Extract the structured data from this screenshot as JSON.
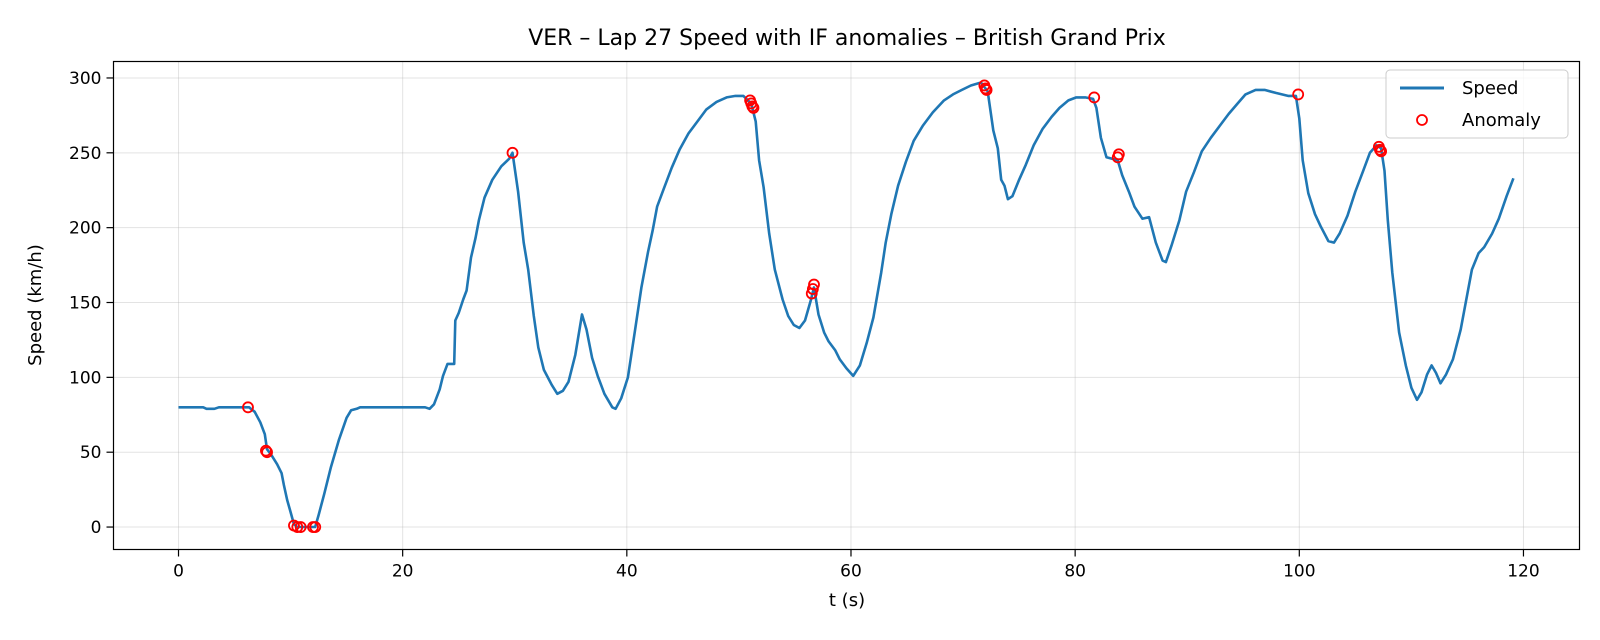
{
  "chart_data": {
    "type": "line",
    "title": "VER – Lap 27 Speed with IF anomalies – British Grand Prix",
    "xlabel": "t (s)",
    "ylabel": "Speed (km/h)",
    "xlim": [
      -5.8,
      125
    ],
    "ylim": [
      -15,
      311
    ],
    "x_ticks": [
      0,
      20,
      40,
      60,
      80,
      100,
      120
    ],
    "y_ticks": [
      0,
      50,
      100,
      150,
      200,
      250,
      300
    ],
    "grid": true,
    "legend": {
      "position": "top-right",
      "entries": [
        "Speed",
        "Anomaly"
      ]
    },
    "series": [
      {
        "name": "Speed",
        "color": "#1f77b4",
        "points": [
          [
            0,
            80
          ],
          [
            2.2,
            80
          ],
          [
            2.5,
            79
          ],
          [
            3.2,
            79
          ],
          [
            3.6,
            80
          ],
          [
            6.3,
            80
          ],
          [
            6.8,
            77
          ],
          [
            7.3,
            70
          ],
          [
            7.7,
            62
          ],
          [
            7.9,
            52
          ],
          [
            8.3,
            48
          ],
          [
            8.8,
            42
          ],
          [
            9.2,
            36
          ],
          [
            9.4,
            28
          ],
          [
            9.7,
            18
          ],
          [
            10.0,
            10
          ],
          [
            10.3,
            2
          ],
          [
            10.6,
            0
          ],
          [
            12.2,
            0
          ],
          [
            12.5,
            8
          ],
          [
            13.0,
            22
          ],
          [
            13.6,
            40
          ],
          [
            14.3,
            58
          ],
          [
            15.0,
            73
          ],
          [
            15.4,
            78
          ],
          [
            15.9,
            79
          ],
          [
            16.2,
            80
          ],
          [
            22.0,
            80
          ],
          [
            22.4,
            79
          ],
          [
            22.8,
            82
          ],
          [
            23.3,
            92
          ],
          [
            23.6,
            101
          ],
          [
            24.0,
            109
          ],
          [
            24.6,
            109
          ],
          [
            24.7,
            138
          ],
          [
            25.0,
            143
          ],
          [
            25.4,
            152
          ],
          [
            25.7,
            158
          ],
          [
            26.1,
            180
          ],
          [
            26.5,
            193
          ],
          [
            26.8,
            205
          ],
          [
            27.3,
            220
          ],
          [
            28.0,
            232
          ],
          [
            28.8,
            241
          ],
          [
            29.5,
            246
          ],
          [
            29.8,
            250
          ],
          [
            30.3,
            224
          ],
          [
            30.8,
            190
          ],
          [
            31.2,
            172
          ],
          [
            31.7,
            141
          ],
          [
            32.1,
            120
          ],
          [
            32.6,
            105
          ],
          [
            33.3,
            95
          ],
          [
            33.8,
            89
          ],
          [
            34.3,
            91
          ],
          [
            34.8,
            97
          ],
          [
            35.4,
            115
          ],
          [
            36.0,
            142
          ],
          [
            36.4,
            132
          ],
          [
            36.9,
            113
          ],
          [
            37.4,
            101
          ],
          [
            38.0,
            89
          ],
          [
            38.7,
            80
          ],
          [
            39.0,
            79
          ],
          [
            39.5,
            86
          ],
          [
            40.1,
            100
          ],
          [
            40.7,
            130
          ],
          [
            41.3,
            160
          ],
          [
            41.9,
            184
          ],
          [
            42.3,
            198
          ],
          [
            42.7,
            214
          ],
          [
            43.3,
            226
          ],
          [
            44.0,
            240
          ],
          [
            44.7,
            252
          ],
          [
            45.5,
            263
          ],
          [
            46.4,
            272
          ],
          [
            47.1,
            279
          ],
          [
            48.0,
            284
          ],
          [
            48.9,
            287
          ],
          [
            49.7,
            288
          ],
          [
            50.4,
            288
          ],
          [
            51.1,
            283
          ],
          [
            51.5,
            271
          ],
          [
            51.8,
            245
          ],
          [
            52.2,
            227
          ],
          [
            52.7,
            196
          ],
          [
            53.2,
            172
          ],
          [
            53.9,
            152
          ],
          [
            54.4,
            141
          ],
          [
            54.9,
            135
          ],
          [
            55.4,
            133
          ],
          [
            55.9,
            138
          ],
          [
            56.4,
            151
          ],
          [
            56.7,
            160
          ],
          [
            57.1,
            142
          ],
          [
            57.6,
            130
          ],
          [
            58.0,
            124
          ],
          [
            58.6,
            118
          ],
          [
            59.0,
            112
          ],
          [
            59.6,
            106
          ],
          [
            60.2,
            101
          ],
          [
            60.8,
            108
          ],
          [
            61.4,
            123
          ],
          [
            62.0,
            140
          ],
          [
            62.7,
            170
          ],
          [
            63.1,
            190
          ],
          [
            63.6,
            209
          ],
          [
            64.2,
            228
          ],
          [
            64.9,
            244
          ],
          [
            65.6,
            258
          ],
          [
            66.4,
            268
          ],
          [
            67.3,
            277
          ],
          [
            68.3,
            285
          ],
          [
            69.1,
            289
          ],
          [
            69.9,
            292
          ],
          [
            70.7,
            295
          ],
          [
            71.6,
            297
          ],
          [
            72.2,
            291
          ],
          [
            72.7,
            265
          ],
          [
            73.1,
            253
          ],
          [
            73.4,
            232
          ],
          [
            73.7,
            228
          ],
          [
            74.0,
            219
          ],
          [
            74.4,
            221
          ],
          [
            75.0,
            232
          ],
          [
            75.6,
            242
          ],
          [
            76.3,
            255
          ],
          [
            77.1,
            266
          ],
          [
            77.9,
            274
          ],
          [
            78.6,
            280
          ],
          [
            79.4,
            285
          ],
          [
            80.1,
            287
          ],
          [
            80.9,
            287
          ],
          [
            81.6,
            286
          ],
          [
            81.9,
            280
          ],
          [
            82.3,
            260
          ],
          [
            82.8,
            247
          ],
          [
            83.8,
            245
          ],
          [
            84.2,
            235
          ],
          [
            84.8,
            224
          ],
          [
            85.3,
            214
          ],
          [
            86.0,
            206
          ],
          [
            86.6,
            207
          ],
          [
            87.2,
            190
          ],
          [
            87.8,
            178
          ],
          [
            88.1,
            177
          ],
          [
            88.6,
            188
          ],
          [
            89.3,
            205
          ],
          [
            89.9,
            224
          ],
          [
            90.6,
            237
          ],
          [
            91.3,
            251
          ],
          [
            92.1,
            260
          ],
          [
            92.9,
            268
          ],
          [
            93.7,
            276
          ],
          [
            94.5,
            283
          ],
          [
            95.2,
            289
          ],
          [
            96.1,
            292
          ],
          [
            96.9,
            292
          ],
          [
            97.9,
            290
          ],
          [
            99.0,
            288
          ],
          [
            99.7,
            288
          ],
          [
            100.0,
            273
          ],
          [
            100.3,
            245
          ],
          [
            100.8,
            223
          ],
          [
            101.4,
            209
          ],
          [
            101.9,
            201
          ],
          [
            102.6,
            191
          ],
          [
            103.1,
            190
          ],
          [
            103.6,
            196
          ],
          [
            104.3,
            208
          ],
          [
            105.0,
            224
          ],
          [
            105.7,
            238
          ],
          [
            106.3,
            250
          ],
          [
            106.9,
            255
          ],
          [
            107.3,
            253
          ],
          [
            107.6,
            238
          ],
          [
            107.9,
            205
          ],
          [
            108.3,
            170
          ],
          [
            108.9,
            130
          ],
          [
            109.5,
            108
          ],
          [
            110.0,
            93
          ],
          [
            110.5,
            85
          ],
          [
            110.9,
            90
          ],
          [
            111.4,
            102
          ],
          [
            111.8,
            108
          ],
          [
            112.2,
            103
          ],
          [
            112.6,
            96
          ],
          [
            113.1,
            102
          ],
          [
            113.7,
            112
          ],
          [
            114.4,
            132
          ],
          [
            114.9,
            152
          ],
          [
            115.4,
            172
          ],
          [
            116.0,
            183
          ],
          [
            116.5,
            187
          ],
          [
            117.2,
            196
          ],
          [
            117.8,
            206
          ],
          [
            118.5,
            221
          ],
          [
            119.1,
            233
          ]
        ]
      },
      {
        "name": "Anomaly",
        "color": "#ff0000",
        "marker": "hollow-circle",
        "points": [
          [
            6.2,
            80
          ],
          [
            7.8,
            51
          ],
          [
            7.9,
            50
          ],
          [
            10.3,
            1
          ],
          [
            10.6,
            0
          ],
          [
            10.9,
            0
          ],
          [
            12.0,
            0
          ],
          [
            12.2,
            0
          ],
          [
            29.8,
            250
          ],
          [
            51.0,
            285
          ],
          [
            51.1,
            283
          ],
          [
            51.2,
            281
          ],
          [
            51.3,
            280
          ],
          [
            56.5,
            156
          ],
          [
            56.6,
            159
          ],
          [
            56.7,
            162
          ],
          [
            71.9,
            295
          ],
          [
            72.0,
            293
          ],
          [
            72.1,
            292
          ],
          [
            81.7,
            287
          ],
          [
            83.8,
            247
          ],
          [
            83.9,
            249
          ],
          [
            99.9,
            289
          ],
          [
            107.1,
            254
          ],
          [
            107.2,
            252
          ],
          [
            107.3,
            251
          ]
        ]
      }
    ]
  }
}
